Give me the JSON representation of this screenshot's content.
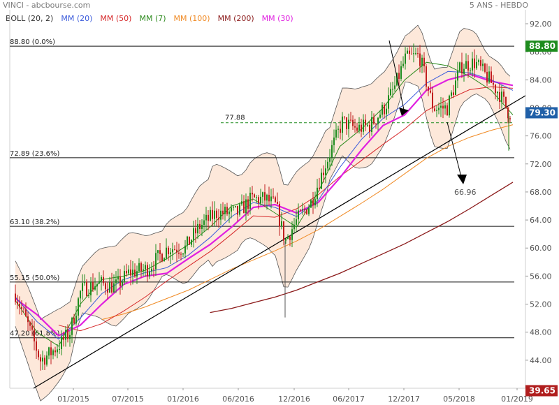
{
  "header": {
    "symbol_source": "VINCI - abcbourse.com",
    "period": "5 ANS - HEBDO"
  },
  "legend": [
    {
      "label": "BOLL (20, 2)",
      "color": "#333333"
    },
    {
      "label": "MM (20)",
      "color": "#3b5bdb"
    },
    {
      "label": "MM (50)",
      "color": "#d6282a"
    },
    {
      "label": "MM (7)",
      "color": "#2e8b1e"
    },
    {
      "label": "MM (100)",
      "color": "#f08a24"
    },
    {
      "label": "MM (200)",
      "color": "#8b1a1a"
    },
    {
      "label": "MM (30)",
      "color": "#e020e0"
    }
  ],
  "badges": {
    "high": {
      "text": "88.80",
      "color": "#1e8c1e"
    },
    "last": {
      "text": "79.30",
      "color": "#2060a8"
    },
    "low": {
      "text": "39.65",
      "color": "#b01e1e"
    }
  },
  "annotations": {
    "resistance_label": "77.88",
    "target_label": "66.96"
  },
  "chart_data": {
    "type": "candlestick",
    "title": "VINCI",
    "x_tick_labels": [
      "01/2015",
      "07/2015",
      "01/2016",
      "06/2016",
      "12/2016",
      "06/2017",
      "12/2017",
      "05/2018",
      "01/2019"
    ],
    "y_tick_labels": [
      "44.00",
      "48.00",
      "52.00",
      "56.00",
      "60.00",
      "64.00",
      "68.00",
      "72.00",
      "76.00",
      "80.00",
      "84.00",
      "88.00",
      "92.00"
    ],
    "ylim": [
      40,
      92
    ],
    "fibonacci_levels": [
      {
        "value": 88.8,
        "label": "88.80  (0.0%)"
      },
      {
        "value": 72.89,
        "label": "72.89  (23.6%)"
      },
      {
        "value": 63.1,
        "label": "63.10  (38.2%)"
      },
      {
        "value": 55.15,
        "label": "55.15  (50.0%)"
      },
      {
        "value": 47.2,
        "label": "47.20  (61.8%)"
      }
    ],
    "horizontal_dashed": {
      "value": 77.88,
      "label": "77.88"
    },
    "target": {
      "value": 66.96,
      "label": "66.96"
    },
    "last_price": 79.3,
    "high": 88.8,
    "low": 39.65,
    "series": [
      {
        "name": "MM (200)",
        "y": [
          null,
          null,
          null,
          null,
          null,
          null,
          null,
          null,
          null,
          50.8,
          51.4,
          52.2,
          53.0,
          54.0,
          55.2,
          56.4,
          57.8,
          59.2,
          60.6,
          62.2,
          63.8,
          65.6,
          67.5,
          69.4
        ]
      },
      {
        "name": "MM (100)",
        "y": [
          null,
          null,
          null,
          null,
          49.8,
          50.6,
          51.6,
          52.8,
          54.0,
          55.5,
          57.0,
          58.3,
          59.6,
          61.0,
          62.6,
          64.5,
          66.4,
          68.4,
          70.6,
          72.8,
          74.5,
          75.8,
          76.8,
          77.6
        ]
      },
      {
        "name": "MM (50)",
        "y": [
          null,
          null,
          49.0,
          48.2,
          49.2,
          51.0,
          53.0,
          55.3,
          57.4,
          59.5,
          62.0,
          64.6,
          64.4,
          65.6,
          67.6,
          70.2,
          72.5,
          74.8,
          77.0,
          79.6,
          81.2,
          82.6,
          83.0,
          82.8
        ]
      },
      {
        "name": "MM (30)",
        "y": [
          52.8,
          50.5,
          47.5,
          49.0,
          52.0,
          54.8,
          56.0,
          56.4,
          58.5,
          60.5,
          63.0,
          65.8,
          66.2,
          65.0,
          66.5,
          70.0,
          74.0,
          77.5,
          79.0,
          82.5,
          84.0,
          84.8,
          83.8,
          83.2
        ]
      },
      {
        "name": "MM (20)",
        "y": [
          53.0,
          49.5,
          47.0,
          50.0,
          53.5,
          55.5,
          56.5,
          57.2,
          59.0,
          61.5,
          64.5,
          66.5,
          65.8,
          64.5,
          66.8,
          71.5,
          75.5,
          78.5,
          80.5,
          83.5,
          85.2,
          85.0,
          84.0,
          82.5
        ]
      },
      {
        "name": "MM (7)",
        "y": [
          52.5,
          48.0,
          46.0,
          52.0,
          55.5,
          56.0,
          56.8,
          58.5,
          60.5,
          63.0,
          66.0,
          67.0,
          65.0,
          63.0,
          68.0,
          74.5,
          77.0,
          80.0,
          84.0,
          86.5,
          86.0,
          84.5,
          82.5,
          79.0
        ]
      }
    ]
  }
}
